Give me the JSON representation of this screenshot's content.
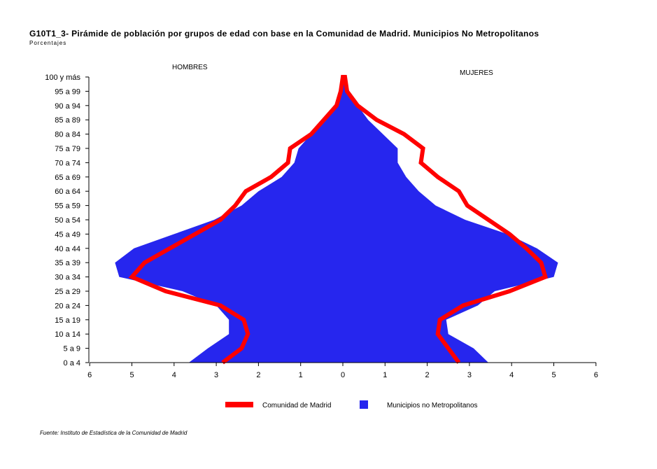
{
  "header": {
    "title": "G10T1_3- Pirámide de población por grupos de edad con base en la Comunidad de Madrid.  Municipios No Metropolitanos",
    "subtitle": "Porcentajes"
  },
  "footer": {
    "source": "Fuente: Instituto de Estadística de la Comunidad de Madrid"
  },
  "chart_data": {
    "type": "area",
    "title": "G10T1_3- Pirámide de población por grupos de edad con base en la Comunidad de Madrid.  Municipios No Metropolitanos",
    "subtitle": "Porcentajes",
    "left_label": "HOMBRES",
    "right_label": "MUJERES",
    "categories": [
      "0 a 4",
      "5 a 9",
      "10 a 14",
      "15 a 19",
      "20 a 24",
      "25 a 29",
      "30 a 34",
      "35 a 39",
      "40 a 44",
      "45 a 49",
      "50 a 54",
      "55 a 59",
      "60 a 64",
      "65 a 69",
      "70 a 74",
      "75 a 79",
      "80 a 84",
      "85 a 89",
      "90 a 94",
      "95 a 99",
      "100 y más"
    ],
    "xticks": [
      "6",
      "5",
      "4",
      "3",
      "2",
      "1",
      "0",
      "1",
      "2",
      "3",
      "4",
      "5",
      "6"
    ],
    "xlim": [
      -6,
      6
    ],
    "series": [
      {
        "name": "Municipios no Metropolitanos",
        "style": "filled-area",
        "color": "#2626ee",
        "hombres": [
          3.65,
          3.2,
          2.7,
          2.7,
          3.0,
          3.8,
          5.3,
          5.4,
          4.95,
          4.0,
          3.05,
          2.4,
          2.0,
          1.45,
          1.15,
          1.05,
          0.75,
          0.45,
          0.2,
          0.05,
          0.0
        ],
        "mujeres": [
          3.45,
          3.1,
          2.5,
          2.45,
          3.2,
          3.6,
          5.0,
          5.1,
          4.6,
          3.9,
          2.9,
          2.2,
          1.8,
          1.5,
          1.3,
          1.3,
          0.95,
          0.6,
          0.35,
          0.15,
          0.05
        ]
      },
      {
        "name": "Comunidad de Madrid",
        "style": "thick-line",
        "color": "#ff0000",
        "hombres": [
          2.85,
          2.4,
          2.25,
          2.35,
          2.9,
          4.2,
          5.0,
          4.7,
          4.1,
          3.5,
          2.9,
          2.55,
          2.3,
          1.7,
          1.3,
          1.25,
          0.75,
          0.45,
          0.15,
          0.05,
          0.0
        ],
        "mujeres": [
          2.75,
          2.5,
          2.25,
          2.3,
          2.85,
          3.95,
          4.8,
          4.7,
          4.35,
          3.95,
          3.45,
          2.95,
          2.75,
          2.25,
          1.85,
          1.9,
          1.45,
          0.8,
          0.35,
          0.1,
          0.05
        ]
      }
    ],
    "legend": {
      "position": "bottom",
      "items": [
        "Comunidad de Madrid",
        "Municipios no Metropolitanos"
      ]
    },
    "grid": false
  }
}
